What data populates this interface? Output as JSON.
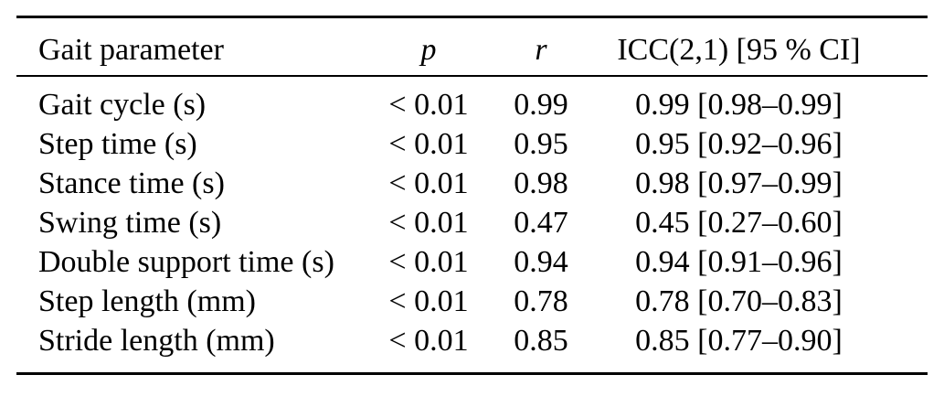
{
  "table": {
    "columns": [
      {
        "label": "Gait parameter"
      },
      {
        "label": "p"
      },
      {
        "label": "r"
      },
      {
        "label": "ICC(2,1) [95 % CI]"
      }
    ],
    "rows": [
      {
        "param": "Gait cycle (s)",
        "p": "< 0.01",
        "r": "0.99",
        "icc": "0.99 [0.98–0.99]"
      },
      {
        "param": "Step time (s)",
        "p": "< 0.01",
        "r": "0.95",
        "icc": "0.95 [0.92–0.96]"
      },
      {
        "param": "Stance time (s)",
        "p": "< 0.01",
        "r": "0.98",
        "icc": "0.98 [0.97–0.99]"
      },
      {
        "param": "Swing time (s)",
        "p": "< 0.01",
        "r": "0.47",
        "icc": "0.45 [0.27–0.60]"
      },
      {
        "param": "Double support time (s)",
        "p": "< 0.01",
        "r": "0.94",
        "icc": "0.94 [0.91–0.96]"
      },
      {
        "param": "Step length (mm)",
        "p": "< 0.01",
        "r": "0.78",
        "icc": "0.78 [0.70–0.83]"
      },
      {
        "param": "Stride length (mm)",
        "p": "< 0.01",
        "r": "0.85",
        "icc": "0.85 [0.77–0.90]"
      }
    ],
    "colors": {
      "text": "#000000",
      "rule": "#000000",
      "background": "#ffffff"
    }
  }
}
